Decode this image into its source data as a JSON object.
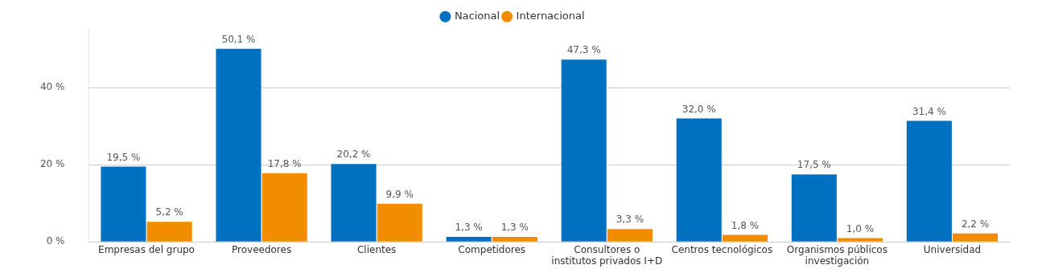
{
  "chart_data": {
    "type": "bar",
    "categories": [
      "Empresas del grupo",
      "Proveedores",
      "Clientes",
      "Competidores",
      "Consultores o institutos privados I+D",
      "Centros tecnológicos",
      "Organismos públicos investigación",
      "Universidad"
    ],
    "series": [
      {
        "name": "Nacional",
        "color": "#0070c0",
        "values": [
          19.5,
          50.1,
          20.2,
          1.3,
          47.3,
          32.0,
          17.5,
          31.4
        ],
        "value_labels": [
          "19,5 %",
          "50,1 %",
          "20,2 %",
          "1,3 %",
          "47,3 %",
          "32,0 %",
          "17,5 %",
          "31,4 %"
        ]
      },
      {
        "name": "Internacional",
        "color": "#f28c00",
        "values": [
          5.2,
          17.8,
          9.9,
          1.3,
          3.3,
          1.8,
          1.0,
          2.2
        ],
        "value_labels": [
          "5,2 %",
          "17,8 %",
          "9,9 %",
          "1,3 %",
          "3,3 %",
          "1,8 %",
          "1,0 %",
          "2,2 %"
        ]
      }
    ],
    "ylim": [
      0,
      55
    ],
    "yticks": [
      {
        "value": 0,
        "label": "0 %"
      },
      {
        "value": 20,
        "label": "20 %"
      },
      {
        "value": 40,
        "label": "40 %"
      }
    ],
    "grid": "y",
    "legend": "top"
  }
}
